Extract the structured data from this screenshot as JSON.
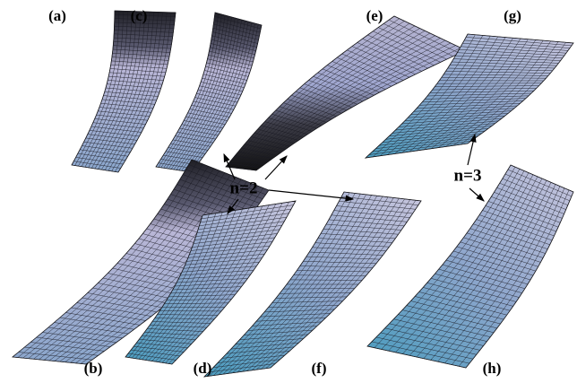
{
  "panels": [
    {
      "label": "(a)"
    },
    {
      "label": "(c)"
    },
    {
      "label": "(e)"
    },
    {
      "label": "(g)"
    },
    {
      "label": "(b)"
    },
    {
      "label": "(d)"
    },
    {
      "label": "(f)"
    },
    {
      "label": "(h)"
    }
  ],
  "annotations": [
    {
      "text": "n=2"
    },
    {
      "text": "n=3"
    }
  ]
}
